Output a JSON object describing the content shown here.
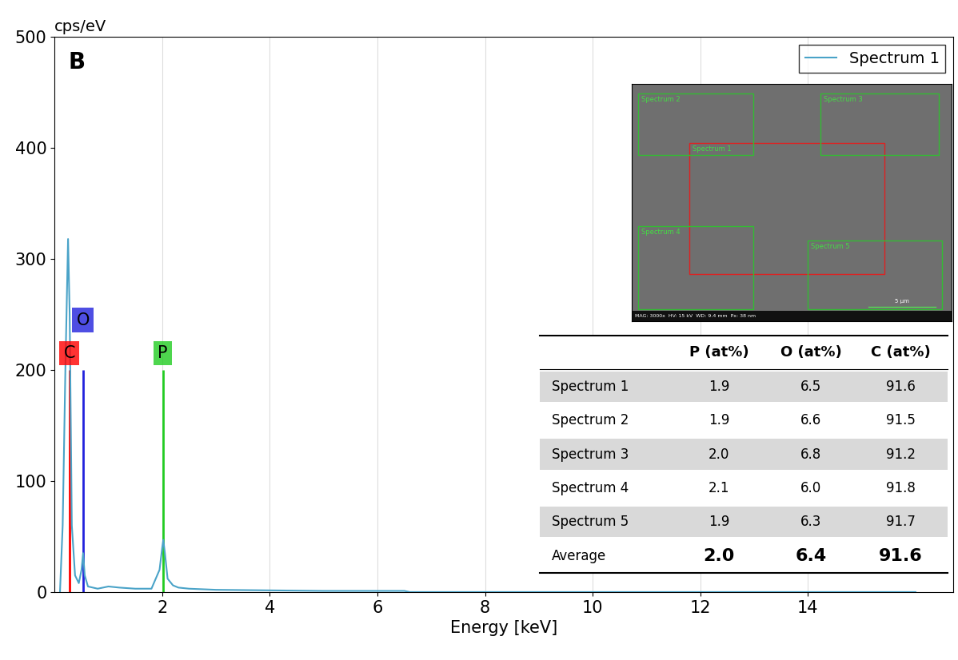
{
  "chart_data": {
    "type": "line",
    "title": "B",
    "y_label": "cps/eV",
    "x_label": "Energy [keV]",
    "xlim": [
      0,
      16.7
    ],
    "xticks": [
      2,
      4,
      6,
      8,
      10,
      12,
      14
    ],
    "ylim": [
      0,
      500
    ],
    "yticks": [
      0,
      100,
      200,
      300,
      400,
      500
    ],
    "legend": "upper right",
    "series": [
      {
        "name": "Spectrum 1",
        "color": "#4aa3c8",
        "x": [
          0.1,
          0.15,
          0.2,
          0.25,
          0.28,
          0.32,
          0.38,
          0.45,
          0.5,
          0.53,
          0.56,
          0.62,
          0.8,
          1.0,
          1.2,
          1.5,
          1.8,
          1.95,
          2.0,
          2.02,
          2.05,
          2.1,
          2.2,
          2.3,
          2.5,
          3.0,
          4.0,
          5.0,
          6.0,
          6.5,
          6.6,
          8.0,
          10.0,
          12.0,
          14.0,
          16.0
        ],
        "values": [
          0,
          60,
          200,
          318,
          250,
          60,
          15,
          8,
          20,
          35,
          15,
          5,
          3,
          5,
          4,
          3,
          3,
          20,
          40,
          47,
          35,
          12,
          6,
          4,
          3,
          2,
          1.5,
          1,
          1,
          1,
          0,
          0,
          0,
          0,
          0,
          0
        ]
      }
    ],
    "element_lines": [
      {
        "label": "C",
        "energy": 0.277,
        "height": 200,
        "color": "#ff0000"
      },
      {
        "label": "O",
        "energy": 0.525,
        "height": 200,
        "color": "#2222dd"
      },
      {
        "label": "P",
        "energy": 2.013,
        "height": 200,
        "color": "#22cc22"
      }
    ]
  },
  "inset_image": {
    "regions": [
      "Spectrum 1",
      "Spectrum 2",
      "Spectrum 3",
      "Spectrum 4",
      "Spectrum 5"
    ],
    "info": "MAG: 3000x  HV: 15 kV  WD: 9.4 mm  Px: 38 nm",
    "scale_bar": "5 µm"
  },
  "table": {
    "header": [
      "",
      "P (at%)",
      "O (at%)",
      "C (at%)"
    ],
    "rows": [
      [
        "Spectrum 1",
        1.9,
        6.5,
        91.6
      ],
      [
        "Spectrum 2",
        1.9,
        6.6,
        91.5
      ],
      [
        "Spectrum 3",
        2.0,
        6.8,
        91.2
      ],
      [
        "Spectrum 4",
        2.1,
        6.0,
        91.8
      ],
      [
        "Spectrum 5",
        1.9,
        6.3,
        91.7
      ]
    ],
    "average": [
      "Average",
      2.0,
      6.4,
      91.6
    ]
  }
}
